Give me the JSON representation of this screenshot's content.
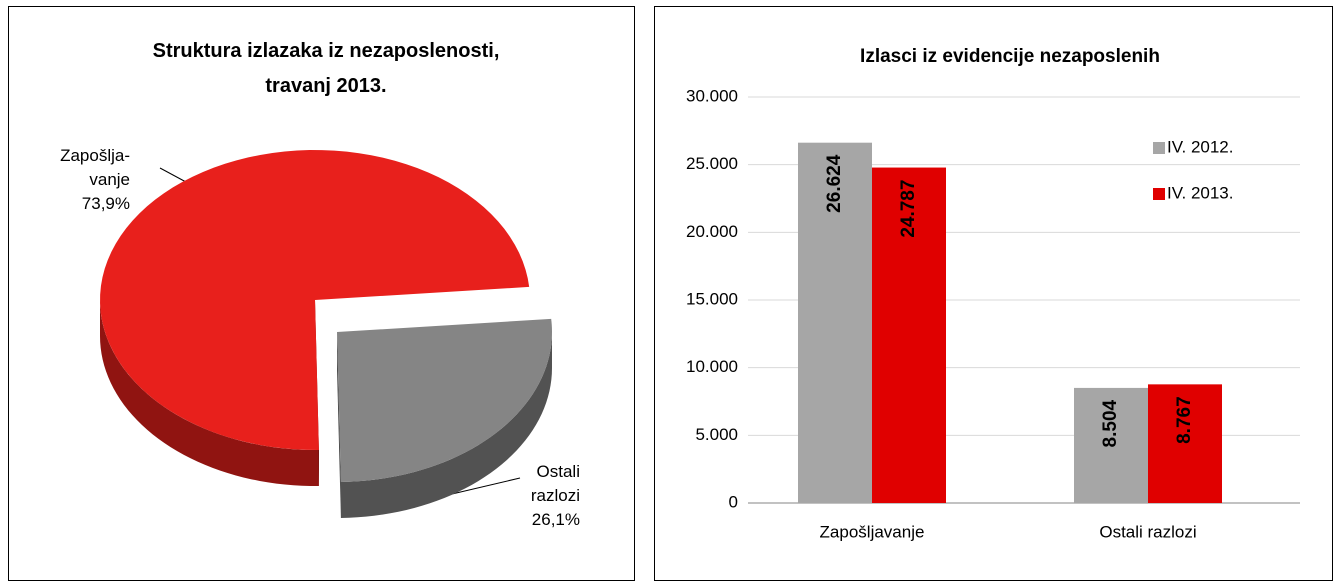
{
  "chart_data": [
    {
      "type": "pie",
      "title": "Struktura izlazaka iz nezaposlenosti,\ntravanj 2013.",
      "categories": [
        "Zapošlja-\nvanje",
        "Ostali\nrazlozi"
      ],
      "values": [
        73.9,
        26.1
      ],
      "value_labels": [
        "73,9%",
        "26,1%"
      ],
      "colors": [
        "#e8201c",
        "#858585"
      ]
    },
    {
      "type": "bar",
      "title": "Izlasci iz evidencije nezaposlenih",
      "categories": [
        "Zapošljavanje",
        "Ostali razlozi"
      ],
      "series": [
        {
          "name": "IV. 2012.",
          "color": "#a6a6a6",
          "values": [
            26624,
            8504
          ],
          "value_labels": [
            "26.624",
            "8.504"
          ]
        },
        {
          "name": "IV. 2013.",
          "color": "#e00000",
          "values": [
            24787,
            8767
          ],
          "value_labels": [
            "24.787",
            "8.767"
          ]
        }
      ],
      "ylim": [
        0,
        30000
      ],
      "yticks": [
        0,
        {
          "value": 5000,
          "label": "5.000"
        },
        {
          "value": 10000,
          "label": "10.000"
        },
        {
          "value": 15000,
          "label": "15.000"
        },
        {
          "value": 20000,
          "label": "20.000"
        },
        {
          "value": 25000,
          "label": "25.000"
        },
        {
          "value": 30000,
          "label": "30.000"
        }
      ],
      "grid": true,
      "legend": "top-right"
    }
  ]
}
